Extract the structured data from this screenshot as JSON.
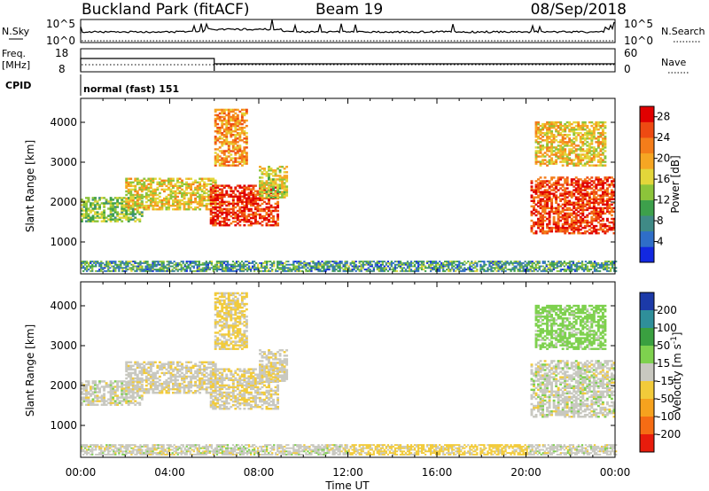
{
  "header": {
    "station": "Buckland Park (fitACF)",
    "beam": "Beam 19",
    "date": "08/Sep/2018"
  },
  "noise_panel": {
    "left_label": "N.Sky",
    "right_label": "N.Search",
    "left_ticks": [
      "10^5",
      "10^0"
    ],
    "right_ticks": [
      "10^5",
      "10^0"
    ]
  },
  "freq_panel": {
    "left_label_line1": "Freq.",
    "left_label_line2": "[MHz]",
    "right_label": "Nave",
    "left_ticks": [
      "18",
      "8"
    ],
    "right_ticks": [
      "60",
      "0"
    ],
    "freq_segments": [
      {
        "from_hour": 0,
        "to_hour": 6,
        "level": "high"
      },
      {
        "from_hour": 6,
        "to_hour": 24,
        "level": "low"
      }
    ]
  },
  "cpid": {
    "label": "CPID",
    "mode_text": "normal (fast) 151"
  },
  "chart_data": [
    {
      "type": "heatmap",
      "name": "power",
      "ylabel": "Slant Range [km]",
      "xlabel": "Time UT",
      "xlim": [
        0,
        24
      ],
      "ylim": [
        200,
        4600
      ],
      "yticks": [
        "1000",
        "2000",
        "3000",
        "4000"
      ],
      "xticks": [
        "00:00",
        "04:00",
        "08:00",
        "12:00",
        "16:00",
        "20:00",
        "00:00"
      ],
      "colorbar": {
        "label": "Power [dB]",
        "ticks": [
          "4",
          "8",
          "12",
          "16",
          "20",
          "24",
          "28"
        ],
        "range": [
          0,
          30
        ],
        "colors": [
          "#1228e0",
          "#2f6ec8",
          "#3f8a86",
          "#3da04b",
          "#8cc43a",
          "#e3d63a",
          "#f6a623",
          "#f47d1a",
          "#ee4a12",
          "#e00000"
        ]
      }
    },
    {
      "type": "heatmap",
      "name": "velocity",
      "ylabel": "Slant Range [km]",
      "xlabel": "Time UT",
      "xlim": [
        0,
        24
      ],
      "ylim": [
        200,
        4600
      ],
      "yticks": [
        "1000",
        "2000",
        "3000",
        "4000"
      ],
      "xticks": [
        "00:00",
        "04:00",
        "08:00",
        "12:00",
        "16:00",
        "20:00",
        "00:00"
      ],
      "colorbar": {
        "label_main": "Velocity [m s",
        "label_sup": "-1",
        "label_end": "]",
        "ticks": [
          "200",
          "100",
          "50",
          "15",
          "-15",
          "-50",
          "-100",
          "-200"
        ],
        "colors": [
          "#1c3aa8",
          "#2f8f9a",
          "#3aa040",
          "#7ed14e",
          "#c8c8c0",
          "#f2cb3a",
          "#f6a21e",
          "#f56c14",
          "#e81c0c"
        ]
      }
    }
  ],
  "echo_regions": [
    {
      "t0": 0.0,
      "t1": 2.8,
      "r0": 1500,
      "r1": 2100,
      "power": 13,
      "vel": 0
    },
    {
      "t0": 2.0,
      "t1": 6.0,
      "r0": 1800,
      "r1": 2600,
      "power": 17,
      "vel": -5
    },
    {
      "t0": 5.8,
      "t1": 8.8,
      "r0": 1400,
      "r1": 2400,
      "power": 27,
      "vel": -10
    },
    {
      "t0": 6.0,
      "t1": 7.4,
      "r0": 2900,
      "r1": 4300,
      "power": 21,
      "vel": -20
    },
    {
      "t0": 8.0,
      "t1": 9.2,
      "r0": 2100,
      "r1": 2900,
      "power": 16,
      "vel": -5
    },
    {
      "t0": 20.2,
      "t1": 24.0,
      "r0": 1200,
      "r1": 2600,
      "power": 26,
      "vel": 0
    },
    {
      "t0": 20.4,
      "t1": 23.6,
      "r0": 2900,
      "r1": 4000,
      "power": 18,
      "vel": 30
    }
  ]
}
